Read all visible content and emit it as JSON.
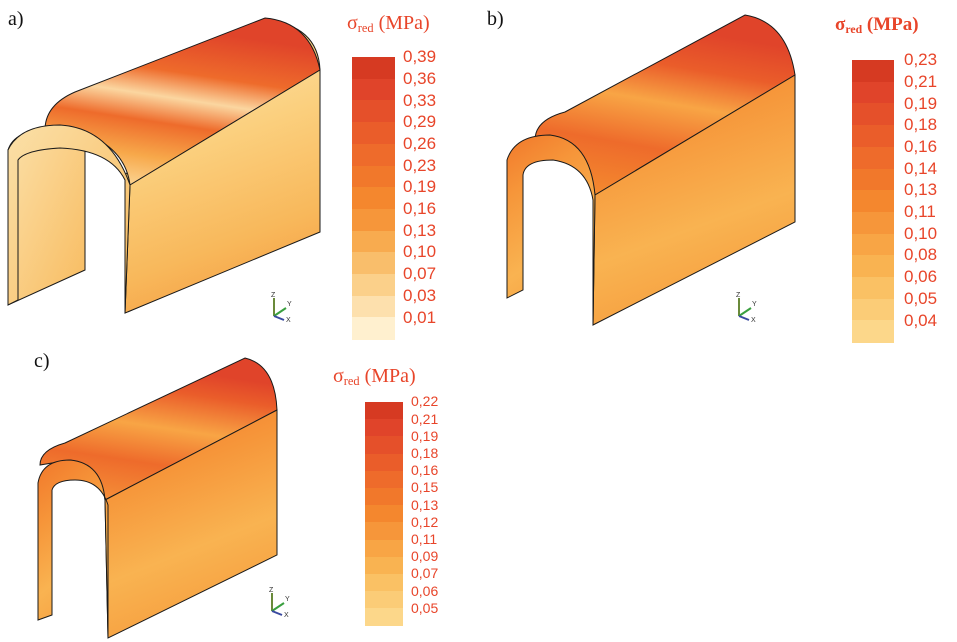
{
  "panels": [
    {
      "id": "a",
      "label": "a)",
      "legend": {
        "symbol": "σ",
        "subscript": "red",
        "unit": "(MPa)",
        "values": [
          "0,39",
          "0,36",
          "0,33",
          "0,29",
          "0,26",
          "0,23",
          "0,19",
          "0,16",
          "0,13",
          "0,10",
          "0,07",
          "0,03",
          "0,01"
        ],
        "colors": [
          "#d63a22",
          "#e0442a",
          "#e5502a",
          "#ea5d2a",
          "#ee6b2b",
          "#f1782b",
          "#f4872e",
          "#f6963a",
          "#f8ab4f",
          "#f9be6b",
          "#fbd08a",
          "#fde0ad",
          "#fff0cf"
        ]
      }
    },
    {
      "id": "b",
      "label": "b)",
      "legend": {
        "symbol": "σ",
        "subscript": "red",
        "unit": "(MPa)",
        "values": [
          "0,23",
          "0,21",
          "0,19",
          "0,18",
          "0,16",
          "0,14",
          "0,13",
          "0,11",
          "0,10",
          "0,08",
          "0,06",
          "0,05",
          "0,04"
        ],
        "colors": [
          "#d63a22",
          "#e0442a",
          "#e5502a",
          "#ea5d2a",
          "#ee6b2b",
          "#f1782b",
          "#f4872e",
          "#f6963a",
          "#f8a545",
          "#f9b351",
          "#fac164",
          "#fbcc77",
          "#fcd78a"
        ]
      }
    },
    {
      "id": "c",
      "label": "c)",
      "legend": {
        "symbol": "σ",
        "subscript": "red",
        "unit": "(MPa)",
        "values": [
          "0,22",
          "0,21",
          "0,19",
          "0,18",
          "0,16",
          "0,15",
          "0,13",
          "0,12",
          "0,11",
          "0,09",
          "0,07",
          "0,06",
          "0,05"
        ],
        "colors": [
          "#d63a22",
          "#e0442a",
          "#e5502a",
          "#ea5d2a",
          "#ee6b2b",
          "#f1782b",
          "#f4872e",
          "#f6963a",
          "#f8a545",
          "#f9b351",
          "#fac164",
          "#fbcc77",
          "#fcd78a"
        ]
      }
    }
  ],
  "axis_triad": {
    "z": "Z",
    "y": "Y",
    "x": "X"
  },
  "colors": {
    "legend_text": "#e8452a",
    "outline": "#1a1a1a"
  }
}
